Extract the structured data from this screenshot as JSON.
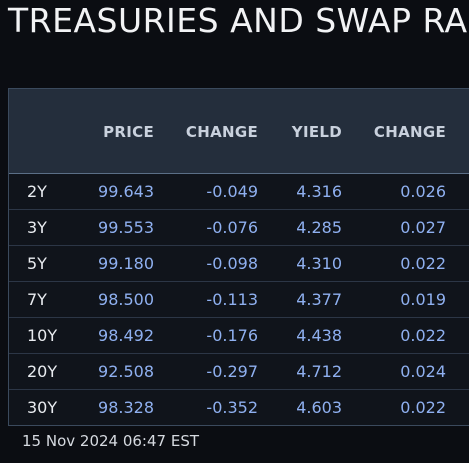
{
  "title": "TREASURIES AND SWAP RA",
  "table": {
    "headers": {
      "price": "PRICE",
      "change": "CHANGE",
      "yield": "YIELD",
      "change2": "CHANGE"
    },
    "rows": [
      {
        "tenor": "2Y",
        "price": "99.643",
        "change": "-0.049",
        "yield": "4.316",
        "change2": "0.026"
      },
      {
        "tenor": "3Y",
        "price": "99.553",
        "change": "-0.076",
        "yield": "4.285",
        "change2": "0.027"
      },
      {
        "tenor": "5Y",
        "price": "99.180",
        "change": "-0.098",
        "yield": "4.310",
        "change2": "0.022"
      },
      {
        "tenor": "7Y",
        "price": "98.500",
        "change": "-0.113",
        "yield": "4.377",
        "change2": "0.019"
      },
      {
        "tenor": "10Y",
        "price": "98.492",
        "change": "-0.176",
        "yield": "4.438",
        "change2": "0.022"
      },
      {
        "tenor": "20Y",
        "price": "92.508",
        "change": "-0.297",
        "yield": "4.712",
        "change2": "0.024"
      },
      {
        "tenor": "30Y",
        "price": "98.328",
        "change": "-0.352",
        "yield": "4.603",
        "change2": "0.022"
      }
    ]
  },
  "timestamp": "15 Nov 2024 06:47 EST",
  "colors": {
    "background": "#0b0d12",
    "header_bg": "#242e3c",
    "value_blue": "#8fb0f0",
    "text_white": "#e9ecf0"
  }
}
